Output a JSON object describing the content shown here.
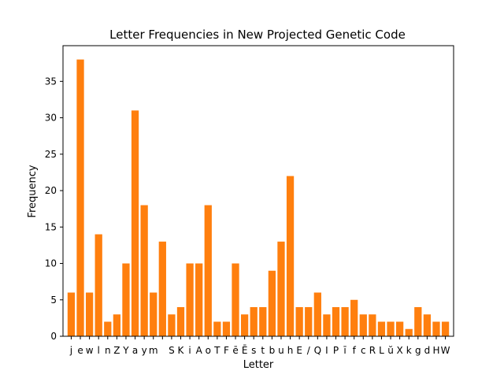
{
  "chart_data": {
    "type": "bar",
    "title": "Letter Frequencies in New Projected Genetic Code",
    "xlabel": "Letter",
    "ylabel": "Frequency",
    "ylim": [
      0,
      39.9
    ],
    "yticks": [
      0,
      5,
      10,
      15,
      20,
      25,
      30,
      35
    ],
    "grid": false,
    "bar_color": "#ff7f0e",
    "categories": [
      "j",
      "e",
      "w",
      "l",
      "n",
      "Z",
      "Y",
      "a",
      "y",
      "m",
      " ",
      "S",
      "K",
      "i",
      "A",
      "o",
      "T",
      "F",
      "ē",
      "Ē",
      "s",
      "t",
      "b",
      "u",
      "h",
      "E",
      "/",
      "Q",
      "I",
      "P",
      "ī",
      "f",
      "c",
      "R",
      "L",
      "ŭ",
      "X",
      "k",
      "g",
      "d",
      "H",
      "W"
    ],
    "values": [
      6,
      38,
      6,
      14,
      2,
      3,
      10,
      31,
      18,
      6,
      13,
      3,
      4,
      10,
      10,
      18,
      2,
      2,
      10,
      3,
      4,
      4,
      9,
      13,
      22,
      4,
      4,
      6,
      3,
      4,
      4,
      5,
      3,
      3,
      2,
      2,
      2,
      1,
      4,
      3,
      2,
      2
    ]
  }
}
